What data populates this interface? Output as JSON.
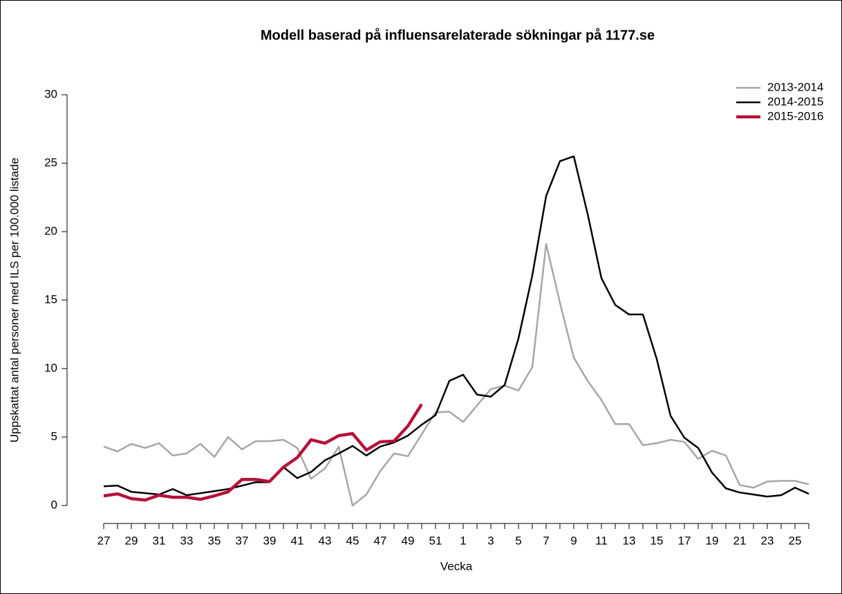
{
  "chart_data": {
    "type": "line",
    "title": "Modell baserad på influensarelaterade sökningar på 1177.se",
    "x_label": "Vecka",
    "y_label": "Uppskattat antal personer med ILS per 100.000 listade",
    "categories": [
      "27",
      null,
      "29",
      null,
      "31",
      null,
      "33",
      null,
      "35",
      null,
      "37",
      null,
      "39",
      null,
      "41",
      null,
      "43",
      null,
      "45",
      null,
      "47",
      null,
      "49",
      null,
      "51",
      null,
      "1",
      null,
      "3",
      null,
      "5",
      null,
      "7",
      null,
      "9",
      null,
      "11",
      null,
      "13",
      null,
      "15",
      null,
      "17",
      null,
      "19",
      null,
      "21",
      null,
      "23",
      null,
      "25",
      null
    ],
    "ylim": [
      0,
      30
    ],
    "yticks": [
      0,
      5,
      10,
      15,
      20,
      25,
      30
    ],
    "legend": "top-right",
    "series": [
      {
        "name": "2013-2014",
        "color": "#a6a6a6",
        "width": 2.5,
        "values": [
          4.3,
          3.95,
          4.5,
          4.2,
          4.55,
          3.65,
          3.8,
          4.5,
          3.55,
          5.0,
          4.1,
          4.7,
          4.7,
          4.8,
          4.2,
          1.95,
          2.7,
          4.3,
          0.0,
          0.8,
          2.5,
          3.8,
          3.6,
          5.2,
          6.8,
          6.85,
          6.1,
          7.3,
          8.5,
          8.75,
          8.4,
          10.1,
          19.1,
          14.8,
          10.8,
          9.1,
          7.7,
          5.95,
          5.95,
          4.4,
          4.55,
          4.8,
          4.65,
          3.4,
          4.0,
          3.65,
          1.5,
          1.3,
          1.75,
          1.8,
          1.8,
          1.55
        ]
      },
      {
        "name": "2014-2015",
        "color": "#000000",
        "width": 2.5,
        "values": [
          1.4,
          1.45,
          1.0,
          0.9,
          0.8,
          1.2,
          0.75,
          0.9,
          1.05,
          1.2,
          1.45,
          1.7,
          1.7,
          2.8,
          2.0,
          2.45,
          3.3,
          3.8,
          4.35,
          3.65,
          4.3,
          4.6,
          5.1,
          5.9,
          6.6,
          9.1,
          9.55,
          8.1,
          7.95,
          8.8,
          12.2,
          16.8,
          22.6,
          25.15,
          25.5,
          21.3,
          16.6,
          14.65,
          13.95,
          13.95,
          10.7,
          6.55,
          4.95,
          4.2,
          2.4,
          1.25,
          0.95,
          0.8,
          0.65,
          0.75,
          1.3,
          0.85
        ]
      },
      {
        "name": "2015-2016",
        "color": "#b5123a",
        "width": 4.5,
        "values": [
          0.7,
          0.85,
          0.5,
          0.4,
          0.75,
          0.6,
          0.6,
          0.45,
          0.7,
          1.0,
          1.9,
          1.9,
          1.75,
          2.8,
          3.5,
          4.8,
          4.55,
          5.1,
          5.25,
          4.05,
          4.65,
          4.7,
          5.8,
          7.4,
          null,
          null,
          null,
          null,
          null,
          null,
          null,
          null,
          null,
          null,
          null,
          null,
          null,
          null,
          null,
          null,
          null,
          null,
          null,
          null,
          null,
          null,
          null,
          null,
          null,
          null,
          null,
          null
        ]
      }
    ]
  }
}
